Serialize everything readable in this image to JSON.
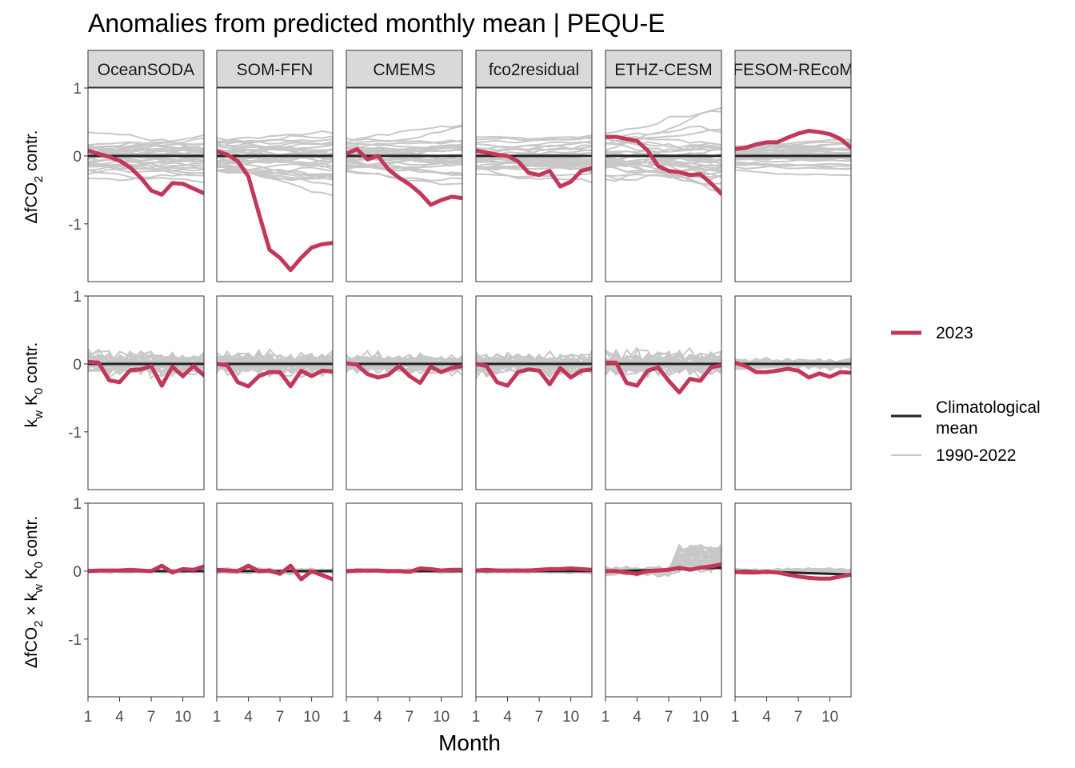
{
  "chart_data": {
    "type": "line",
    "title": "Anomalies from predicted monthly mean | PEQU-E",
    "xlabel": "Month",
    "x_ticks": [
      1,
      4,
      7,
      10
    ],
    "x_range": [
      1,
      12
    ],
    "y_range": [
      -1.85,
      1.0
    ],
    "y_ticks": [
      1,
      0,
      -1
    ],
    "panels": [
      "OceanSODA",
      "SOM-FFN",
      "CMEMS",
      "fco2residual",
      "ETHZ-CESM",
      "FESOM-REcoM"
    ],
    "row_labels": [
      {
        "pre": "ΔfCO",
        "sub": "2",
        "post": " contr."
      },
      {
        "pre": "k",
        "sub": "w",
        "mid": " K",
        "sub2": "0",
        "post": " contr."
      },
      {
        "pre": "ΔfCO",
        "sub": "2",
        "mid": " × k",
        "sub2": "w",
        "mid2": " K",
        "sub3": "0",
        "post": " contr."
      }
    ],
    "legend": {
      "highlight_label": "2023",
      "clim_label_1": "Climatological",
      "clim_label_2": "mean",
      "hist_label": "1990-2022"
    },
    "colors": {
      "highlight": "#C2375A",
      "climatology": "#222222",
      "history": "#C8C8C8",
      "strip": "#D9D9D9"
    },
    "series_2023": [
      [
        [
          0.08,
          0.03,
          -0.01,
          -0.07,
          -0.17,
          -0.32,
          -0.51,
          -0.57,
          -0.4,
          -0.41,
          -0.48,
          -0.55
        ],
        [
          0.03,
          0.02,
          -0.24,
          -0.27,
          -0.09,
          -0.08,
          -0.03,
          -0.32,
          -0.04,
          -0.18,
          -0.03,
          -0.17
        ],
        [
          0.0,
          0.01,
          0.01,
          0.01,
          0.02,
          0.01,
          0.0,
          0.08,
          -0.02,
          0.03,
          0.02,
          0.07
        ]
      ],
      [
        [
          0.07,
          0.02,
          -0.08,
          -0.3,
          -0.85,
          -1.38,
          -1.5,
          -1.68,
          -1.5,
          -1.35,
          -1.3,
          -1.28
        ],
        [
          0.0,
          -0.02,
          -0.27,
          -0.33,
          -0.18,
          -0.12,
          -0.12,
          -0.33,
          -0.1,
          -0.18,
          -0.1,
          -0.11
        ],
        [
          0.02,
          0.01,
          0.0,
          0.08,
          0.0,
          0.01,
          -0.04,
          0.08,
          -0.12,
          0.0,
          -0.06,
          -0.12
        ]
      ],
      [
        [
          0.03,
          0.1,
          -0.05,
          0.0,
          -0.2,
          -0.32,
          -0.42,
          -0.55,
          -0.72,
          -0.65,
          -0.6,
          -0.62
        ],
        [
          0.01,
          -0.01,
          -0.15,
          -0.2,
          -0.16,
          -0.03,
          -0.18,
          -0.28,
          -0.04,
          -0.12,
          -0.06,
          -0.03
        ],
        [
          0.0,
          0.01,
          0.01,
          0.01,
          0.0,
          0.0,
          -0.01,
          0.04,
          0.03,
          0.01,
          0.02,
          0.02
        ]
      ],
      [
        [
          0.08,
          0.05,
          0.02,
          0.0,
          -0.08,
          -0.25,
          -0.28,
          -0.22,
          -0.45,
          -0.38,
          -0.22,
          -0.18
        ],
        [
          0.0,
          -0.03,
          -0.27,
          -0.32,
          -0.12,
          -0.08,
          -0.1,
          -0.3,
          -0.06,
          -0.2,
          -0.1,
          -0.08
        ],
        [
          0.01,
          0.02,
          0.01,
          0.01,
          0.01,
          0.01,
          0.02,
          0.03,
          0.03,
          0.04,
          0.03,
          0.02
        ]
      ],
      [
        [
          0.28,
          0.28,
          0.25,
          0.22,
          0.08,
          -0.15,
          -0.22,
          -0.24,
          -0.28,
          -0.27,
          -0.4,
          -0.56
        ],
        [
          0.02,
          0.02,
          -0.28,
          -0.32,
          -0.1,
          -0.05,
          -0.25,
          -0.42,
          -0.22,
          -0.25,
          -0.05,
          -0.02
        ],
        [
          0.0,
          0.0,
          -0.02,
          -0.04,
          0.0,
          0.01,
          0.02,
          0.05,
          0.02,
          0.05,
          0.07,
          0.1
        ]
      ],
      [
        [
          0.1,
          0.12,
          0.17,
          0.2,
          0.2,
          0.27,
          0.33,
          0.37,
          0.35,
          0.32,
          0.25,
          0.12
        ],
        [
          0.02,
          -0.03,
          -0.12,
          -0.12,
          -0.1,
          -0.07,
          -0.1,
          -0.2,
          -0.14,
          -0.19,
          -0.12,
          -0.13
        ],
        [
          -0.01,
          -0.02,
          -0.02,
          -0.01,
          -0.02,
          -0.05,
          -0.08,
          -0.1,
          -0.11,
          -0.11,
          -0.08,
          -0.05
        ]
      ]
    ],
    "climatology": [
      [
        [
          0,
          0,
          0,
          0,
          0,
          0,
          0,
          0,
          0,
          0,
          0,
          0
        ],
        [
          0,
          0,
          0,
          0,
          0,
          0,
          0,
          0,
          0,
          0,
          0,
          0
        ],
        [
          0,
          0,
          0,
          0,
          0,
          0,
          0,
          0,
          0,
          0,
          0,
          0
        ]
      ],
      [
        [
          0,
          0,
          0,
          0,
          0,
          0,
          0,
          0,
          0,
          0,
          0,
          0
        ],
        [
          0,
          0,
          0,
          0,
          0,
          0,
          0,
          0,
          0,
          0,
          0,
          0
        ],
        [
          0,
          0,
          0,
          0,
          0,
          0,
          0,
          0,
          0,
          0,
          0,
          0
        ]
      ],
      [
        [
          0,
          0,
          0,
          0,
          0,
          0,
          0,
          0,
          0,
          0,
          0,
          0
        ],
        [
          0,
          0,
          0,
          0,
          0,
          0,
          0,
          0,
          0,
          0,
          0,
          0
        ],
        [
          0,
          0,
          0,
          0,
          0,
          0,
          0,
          0,
          0,
          0,
          0,
          0
        ]
      ],
      [
        [
          0,
          0,
          0,
          0,
          0,
          0,
          0,
          0,
          0,
          0,
          0,
          0
        ],
        [
          0,
          0,
          0,
          0,
          0,
          0,
          0,
          0,
          0,
          0,
          0,
          0
        ],
        [
          0,
          0,
          0,
          0,
          0,
          0,
          0,
          0,
          0,
          0,
          0,
          0
        ]
      ],
      [
        [
          0,
          0,
          0,
          0,
          0,
          0,
          0,
          0,
          0,
          0,
          0,
          0
        ],
        [
          0,
          0,
          0,
          0,
          0,
          0,
          0,
          0,
          0,
          0,
          0,
          0
        ],
        [
          0,
          0,
          0.005,
          0.01,
          0.015,
          0.02,
          0.025,
          0.03,
          0.035,
          0.04,
          0.045,
          0.05
        ]
      ],
      [
        [
          0,
          0,
          0,
          0,
          0,
          0,
          0,
          0,
          0,
          0,
          0,
          0
        ],
        [
          0,
          0,
          0,
          0,
          0,
          0,
          0,
          0,
          0,
          0,
          0,
          0
        ],
        [
          0,
          0,
          -0.005,
          -0.01,
          -0.015,
          -0.02,
          -0.025,
          -0.03,
          -0.035,
          -0.04,
          -0.045,
          -0.05
        ]
      ]
    ],
    "history_spread": [
      [
        0.5,
        0.28,
        0.04
      ],
      [
        0.55,
        0.28,
        0.06
      ],
      [
        0.48,
        0.22,
        0.04
      ],
      [
        0.5,
        0.25,
        0.05
      ],
      [
        0.75,
        0.3,
        0.1
      ],
      [
        0.3,
        0.12,
        0.06
      ]
    ]
  }
}
